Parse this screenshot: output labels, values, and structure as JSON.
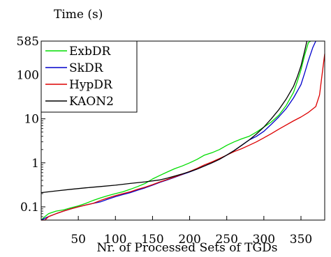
{
  "chart_data": {
    "type": "line",
    "ylabel": "Time (s)",
    "xlabel": "Nr. of Processed Sets of TGDs",
    "x_scale": "linear",
    "y_scale": "log",
    "xlim": [
      0,
      382
    ],
    "ylim": [
      0.05,
      585
    ],
    "x_ticks": [
      {
        "value": 50,
        "label": "50"
      },
      {
        "value": 100,
        "label": "100"
      },
      {
        "value": 150,
        "label": "150"
      },
      {
        "value": 200,
        "label": "200"
      },
      {
        "value": 250,
        "label": "250"
      },
      {
        "value": 300,
        "label": "300"
      },
      {
        "value": 350,
        "label": "350"
      }
    ],
    "y_ticks": [
      {
        "value": 0.1,
        "label": "0.1"
      },
      {
        "value": 1,
        "label": "1"
      },
      {
        "value": 10,
        "label": "10"
      },
      {
        "value": 100,
        "label": "100"
      },
      {
        "value": 585,
        "label": "585"
      }
    ],
    "grid": false,
    "legend_position": "top-left",
    "series": [
      {
        "name": "ExbDR",
        "color": "#00dd00",
        "x": [
          0,
          5,
          10,
          20,
          30,
          40,
          50,
          60,
          70,
          80,
          90,
          100,
          110,
          120,
          130,
          140,
          150,
          160,
          170,
          180,
          190,
          200,
          210,
          220,
          230,
          240,
          250,
          260,
          270,
          280,
          290,
          300,
          310,
          320,
          330,
          340,
          345,
          350,
          355,
          360,
          363
        ],
        "y": [
          0.05,
          0.06,
          0.07,
          0.08,
          0.085,
          0.095,
          0.105,
          0.12,
          0.14,
          0.16,
          0.18,
          0.2,
          0.22,
          0.25,
          0.29,
          0.34,
          0.43,
          0.52,
          0.62,
          0.74,
          0.85,
          1.0,
          1.2,
          1.5,
          1.7,
          2.0,
          2.5,
          3.0,
          3.5,
          4.0,
          5.0,
          6.5,
          8.5,
          12,
          20,
          40,
          70,
          130,
          280,
          540,
          585
        ]
      },
      {
        "name": "SkDR",
        "color": "#0000cc",
        "x": [
          0,
          5,
          10,
          20,
          30,
          40,
          50,
          60,
          70,
          80,
          90,
          100,
          110,
          120,
          130,
          140,
          150,
          160,
          170,
          180,
          190,
          200,
          210,
          220,
          230,
          240,
          250,
          260,
          270,
          280,
          290,
          300,
          310,
          320,
          330,
          340,
          350,
          355,
          360,
          366,
          370
        ],
        "y": [
          0.05,
          0.055,
          0.06,
          0.07,
          0.08,
          0.09,
          0.1,
          0.11,
          0.12,
          0.13,
          0.15,
          0.17,
          0.19,
          0.21,
          0.24,
          0.27,
          0.31,
          0.36,
          0.41,
          0.47,
          0.54,
          0.62,
          0.72,
          0.85,
          1.0,
          1.2,
          1.5,
          1.9,
          2.5,
          3.3,
          4.0,
          5.2,
          7.5,
          11,
          17,
          30,
          60,
          110,
          210,
          420,
          585
        ]
      },
      {
        "name": "HypDR",
        "color": "#dd0000",
        "x": [
          0,
          5,
          10,
          20,
          30,
          40,
          50,
          60,
          70,
          80,
          90,
          100,
          110,
          120,
          130,
          140,
          150,
          160,
          170,
          180,
          190,
          200,
          210,
          220,
          230,
          240,
          250,
          260,
          270,
          280,
          290,
          300,
          310,
          320,
          330,
          340,
          350,
          360,
          370,
          375,
          379,
          382
        ],
        "y": [
          0.05,
          0.05,
          0.06,
          0.07,
          0.08,
          0.09,
          0.1,
          0.11,
          0.12,
          0.14,
          0.16,
          0.18,
          0.2,
          0.22,
          0.25,
          0.28,
          0.32,
          0.37,
          0.42,
          0.48,
          0.55,
          0.64,
          0.75,
          0.9,
          1.05,
          1.25,
          1.5,
          1.8,
          2.1,
          2.5,
          3.0,
          3.7,
          4.6,
          5.8,
          7.2,
          9.0,
          11,
          14,
          19,
          35,
          120,
          300
        ]
      },
      {
        "name": "KAON2",
        "color": "#000000",
        "x": [
          0,
          10,
          20,
          40,
          60,
          80,
          100,
          120,
          140,
          160,
          170,
          180,
          190,
          200,
          210,
          220,
          230,
          240,
          250,
          260,
          270,
          280,
          290,
          300,
          310,
          320,
          330,
          340,
          345,
          350,
          355,
          358
        ],
        "y": [
          0.21,
          0.22,
          0.23,
          0.25,
          0.27,
          0.29,
          0.31,
          0.34,
          0.37,
          0.41,
          0.45,
          0.5,
          0.56,
          0.63,
          0.72,
          0.85,
          1.0,
          1.2,
          1.5,
          1.9,
          2.5,
          3.3,
          4.5,
          6.5,
          10,
          16,
          28,
          55,
          90,
          160,
          350,
          585
        ]
      }
    ]
  }
}
